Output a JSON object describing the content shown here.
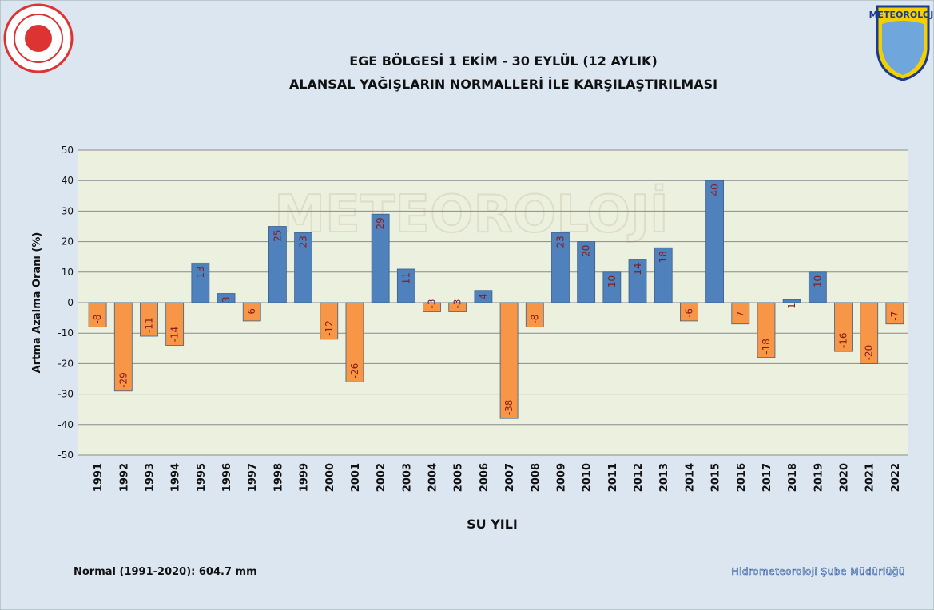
{
  "logo_text": "METEOROLOJİ",
  "chart_data": {
    "type": "bar",
    "title": "EGE BÖLGESİ  1 EKİM - 30 EYLÜL (12 AYLIK)",
    "subtitle": "ALANSAL YAĞIŞLARIN NORMALLERİ İLE KARŞILAŞTIRILMASI",
    "y_label": "Artma Azalma Oranı (%)",
    "x_label": "SU YILI",
    "note": "Normal (1991-2020): 604.7 mm",
    "credit": "Hidrometeoroloji Şube Müdürlüğü",
    "categories": [
      "1991",
      "1992",
      "1993",
      "1994",
      "1995",
      "1996",
      "1997",
      "1998",
      "1999",
      "2000",
      "2001",
      "2002",
      "2003",
      "2004",
      "2005",
      "2006",
      "2007",
      "2008",
      "2009",
      "2010",
      "2011",
      "2012",
      "2013",
      "2014",
      "2015",
      "2016",
      "2017",
      "2018",
      "2019",
      "2020",
      "2021",
      "2022"
    ],
    "values": [
      -8,
      -29,
      -11,
      -14,
      13,
      3,
      -6,
      25,
      23,
      -12,
      -26,
      29,
      11,
      -3,
      -3,
      4,
      -38,
      -8,
      23,
      20,
      10,
      14,
      18,
      -6,
      40,
      -7,
      -18,
      1,
      10,
      -16,
      -20,
      -7
    ],
    "positive_color": "#4f81bd",
    "negative_color": "#f79646",
    "ylim": [
      -50,
      50
    ],
    "yticks": [
      -50,
      -40,
      -30,
      -20,
      -10,
      0,
      10,
      20,
      30,
      40,
      50
    ],
    "grid": true
  }
}
